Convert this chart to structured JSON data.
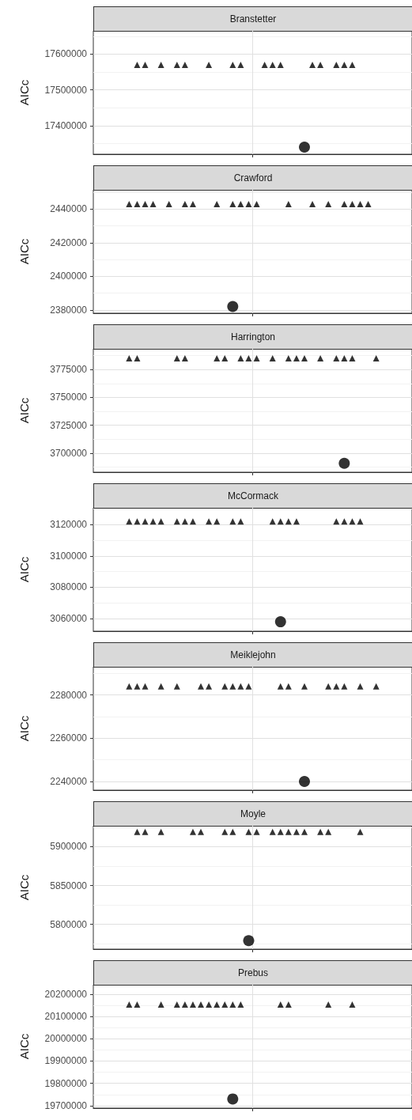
{
  "chart_data": [
    {
      "type": "scatter",
      "title": "Branstetter",
      "ylabel": "AICc",
      "grid": true,
      "tick_labels": "y",
      "categories": [
        null,
        null,
        null,
        null,
        null,
        null,
        null,
        null,
        null,
        null,
        null,
        null,
        null,
        null,
        null,
        null,
        null,
        null,
        null,
        null,
        null,
        null,
        null,
        null,
        null,
        null,
        null,
        null,
        null,
        null,
        null,
        null,
        null,
        null,
        null,
        null,
        null,
        null,
        null,
        null
      ],
      "ylim": [
        17320000,
        17665000
      ],
      "yticks": [
        17400000,
        17500000,
        17600000
      ],
      "series": [
        {
          "marker": "triangle",
          "color": "#000000",
          "values": [
            null,
            null,
            null,
            null,
            null,
            17570000,
            17570000,
            null,
            17570000,
            null,
            17570000,
            17570000,
            null,
            null,
            17570000,
            null,
            null,
            17570000,
            17570000,
            null,
            null,
            17570000,
            17570000,
            17570000,
            null,
            null,
            null,
            17570000,
            17570000,
            null,
            17570000,
            17570000,
            17570000,
            null,
            null,
            null,
            null,
            null,
            null,
            null
          ]
        },
        {
          "marker": "circle",
          "color": "#000000",
          "values": [
            null,
            null,
            null,
            null,
            null,
            null,
            null,
            null,
            null,
            null,
            null,
            null,
            null,
            null,
            null,
            null,
            null,
            null,
            null,
            null,
            null,
            null,
            null,
            null,
            null,
            null,
            17340000,
            null,
            null,
            null,
            null,
            null,
            null,
            null,
            null,
            null,
            null,
            null,
            null,
            null
          ]
        }
      ]
    },
    {
      "type": "scatter",
      "title": "Crawford",
      "ylabel": "AICc",
      "grid": true,
      "tick_labels": "y",
      "categories": [
        null,
        null,
        null,
        null,
        null,
        null,
        null,
        null,
        null,
        null,
        null,
        null,
        null,
        null,
        null,
        null,
        null,
        null,
        null,
        null,
        null,
        null,
        null,
        null,
        null,
        null,
        null,
        null,
        null,
        null,
        null,
        null,
        null,
        null,
        null,
        null,
        null,
        null,
        null,
        null
      ],
      "ylim": [
        2378000,
        2451500
      ],
      "yticks": [
        2380000,
        2400000,
        2420000,
        2440000
      ],
      "series": [
        {
          "marker": "triangle",
          "color": "#000000",
          "values": [
            null,
            null,
            null,
            null,
            2443000,
            2443000,
            2443000,
            2443000,
            null,
            2443000,
            null,
            2443000,
            2443000,
            null,
            null,
            2443000,
            null,
            2443000,
            2443000,
            2443000,
            2443000,
            null,
            null,
            null,
            2443000,
            null,
            null,
            2443000,
            null,
            2443000,
            null,
            2443000,
            2443000,
            2443000,
            2443000,
            null,
            null,
            null,
            null,
            null
          ]
        },
        {
          "marker": "circle",
          "color": "#000000",
          "values": [
            null,
            null,
            null,
            null,
            null,
            null,
            null,
            null,
            null,
            null,
            null,
            null,
            null,
            null,
            null,
            null,
            null,
            2382000,
            null,
            null,
            null,
            null,
            null,
            null,
            null,
            null,
            null,
            null,
            null,
            null,
            null,
            null,
            null,
            null,
            null,
            null,
            null,
            null,
            null,
            null
          ]
        }
      ]
    },
    {
      "type": "scatter",
      "title": "Harrington",
      "ylabel": "AICc",
      "grid": true,
      "tick_labels": "y",
      "categories": [
        null,
        null,
        null,
        null,
        null,
        null,
        null,
        null,
        null,
        null,
        null,
        null,
        null,
        null,
        null,
        null,
        null,
        null,
        null,
        null,
        null,
        null,
        null,
        null,
        null,
        null,
        null,
        null,
        null,
        null,
        null,
        null,
        null,
        null,
        null,
        null,
        null,
        null,
        null,
        null
      ],
      "ylim": [
        3683000,
        3793500
      ],
      "yticks": [
        3700000,
        3725000,
        3750000,
        3775000
      ],
      "series": [
        {
          "marker": "triangle",
          "color": "#000000",
          "values": [
            null,
            null,
            null,
            null,
            3785000,
            3785000,
            null,
            null,
            null,
            null,
            3785000,
            3785000,
            null,
            null,
            null,
            3785000,
            3785000,
            null,
            3785000,
            3785000,
            3785000,
            null,
            3785000,
            null,
            3785000,
            3785000,
            3785000,
            null,
            3785000,
            null,
            3785000,
            3785000,
            3785000,
            null,
            null,
            3785000,
            null,
            null,
            null,
            null
          ]
        },
        {
          "marker": "circle",
          "color": "#000000",
          "values": [
            null,
            null,
            null,
            null,
            null,
            null,
            null,
            null,
            null,
            null,
            null,
            null,
            null,
            null,
            null,
            null,
            null,
            null,
            null,
            null,
            null,
            null,
            null,
            null,
            null,
            null,
            null,
            null,
            null,
            null,
            null,
            3691000,
            null,
            null,
            null,
            null,
            null,
            null,
            null,
            null
          ]
        }
      ]
    },
    {
      "type": "scatter",
      "title": "McCormack",
      "ylabel": "AICc",
      "grid": true,
      "tick_labels": "y",
      "categories": [
        null,
        null,
        null,
        null,
        null,
        null,
        null,
        null,
        null,
        null,
        null,
        null,
        null,
        null,
        null,
        null,
        null,
        null,
        null,
        null,
        null,
        null,
        null,
        null,
        null,
        null,
        null,
        null,
        null,
        null,
        null,
        null,
        null,
        null,
        null,
        null,
        null,
        null,
        null,
        null
      ],
      "ylim": [
        3052000,
        3130700
      ],
      "yticks": [
        3060000,
        3080000,
        3100000,
        3120000
      ],
      "series": [
        {
          "marker": "triangle",
          "color": "#000000",
          "values": [
            null,
            null,
            null,
            null,
            3122000,
            3122000,
            3122000,
            3122000,
            3122000,
            null,
            3122000,
            3122000,
            3122000,
            null,
            3122000,
            3122000,
            null,
            3122000,
            3122000,
            null,
            null,
            null,
            3122000,
            3122000,
            3122000,
            3122000,
            null,
            null,
            null,
            null,
            3122000,
            3122000,
            3122000,
            3122000,
            null,
            null,
            null,
            null,
            null,
            null
          ]
        },
        {
          "marker": "circle",
          "color": "#000000",
          "values": [
            null,
            null,
            null,
            null,
            null,
            null,
            null,
            null,
            null,
            null,
            null,
            null,
            null,
            null,
            null,
            null,
            null,
            null,
            null,
            null,
            null,
            null,
            null,
            3058000,
            null,
            null,
            null,
            null,
            null,
            null,
            null,
            null,
            null,
            null,
            null,
            null,
            null,
            null,
            null,
            null
          ]
        }
      ]
    },
    {
      "type": "scatter",
      "title": "Meiklejohn",
      "ylabel": "AICc",
      "grid": true,
      "tick_labels": "y",
      "categories": [
        null,
        null,
        null,
        null,
        null,
        null,
        null,
        null,
        null,
        null,
        null,
        null,
        null,
        null,
        null,
        null,
        null,
        null,
        null,
        null,
        null,
        null,
        null,
        null,
        null,
        null,
        null,
        null,
        null,
        null,
        null,
        null,
        null,
        null,
        null,
        null,
        null,
        null,
        null,
        null
      ],
      "ylim": [
        2236000,
        2293000
      ],
      "yticks": [
        2240000,
        2260000,
        2280000
      ],
      "series": [
        {
          "marker": "triangle",
          "color": "#000000",
          "values": [
            null,
            null,
            null,
            null,
            2284000,
            2284000,
            2284000,
            null,
            2284000,
            null,
            2284000,
            null,
            null,
            2284000,
            2284000,
            null,
            2284000,
            2284000,
            2284000,
            2284000,
            null,
            null,
            null,
            2284000,
            2284000,
            null,
            2284000,
            null,
            null,
            2284000,
            2284000,
            2284000,
            null,
            2284000,
            null,
            2284000,
            null,
            null,
            null,
            null
          ]
        },
        {
          "marker": "circle",
          "color": "#000000",
          "values": [
            null,
            null,
            null,
            null,
            null,
            null,
            null,
            null,
            null,
            null,
            null,
            null,
            null,
            null,
            null,
            null,
            null,
            null,
            null,
            null,
            null,
            null,
            null,
            null,
            null,
            null,
            2240000,
            null,
            null,
            null,
            null,
            null,
            null,
            null,
            null,
            null,
            null,
            null,
            null,
            null
          ]
        }
      ]
    },
    {
      "type": "scatter",
      "title": "Moyle",
      "ylabel": "AICc",
      "grid": true,
      "tick_labels": "y",
      "categories": [
        null,
        null,
        null,
        null,
        null,
        null,
        null,
        null,
        null,
        null,
        null,
        null,
        null,
        null,
        null,
        null,
        null,
        null,
        null,
        null,
        null,
        null,
        null,
        null,
        null,
        null,
        null,
        null,
        null,
        null,
        null,
        null,
        null,
        null,
        null,
        null,
        null,
        null,
        null,
        null
      ],
      "ylim": [
        5768000,
        5927000
      ],
      "yticks": [
        5800000,
        5850000,
        5900000
      ],
      "series": [
        {
          "marker": "triangle",
          "color": "#000000",
          "values": [
            null,
            null,
            null,
            null,
            null,
            5919000,
            5919000,
            null,
            5919000,
            null,
            null,
            null,
            5919000,
            5919000,
            null,
            null,
            5919000,
            5919000,
            null,
            5919000,
            5919000,
            null,
            5919000,
            5919000,
            5919000,
            5919000,
            5919000,
            null,
            5919000,
            5919000,
            null,
            null,
            null,
            5919000,
            null,
            null,
            null,
            null,
            null,
            null
          ]
        },
        {
          "marker": "circle",
          "color": "#000000",
          "values": [
            null,
            null,
            null,
            null,
            null,
            null,
            null,
            null,
            null,
            null,
            null,
            null,
            null,
            null,
            null,
            null,
            null,
            null,
            null,
            5779000,
            null,
            null,
            null,
            null,
            null,
            null,
            null,
            null,
            null,
            null,
            null,
            null,
            null,
            null,
            null,
            null,
            null,
            null,
            null,
            null
          ]
        }
      ]
    },
    {
      "type": "scatter",
      "title": "Prebus",
      "ylabel": "AICc",
      "grid": true,
      "tick_labels": "y",
      "categories": [
        null,
        null,
        null,
        null,
        null,
        null,
        null,
        null,
        null,
        null,
        null,
        null,
        null,
        null,
        null,
        null,
        null,
        null,
        null,
        null,
        null,
        null,
        null,
        null,
        null,
        null,
        null,
        null,
        null,
        null,
        null,
        null,
        null,
        null,
        null,
        null,
        null,
        null,
        null,
        null
      ],
      "ylim": [
        19689000,
        20242000
      ],
      "yticks": [
        19700000,
        19800000,
        19900000,
        20000000,
        20100000,
        20200000
      ],
      "series": [
        {
          "marker": "triangle",
          "color": "#000000",
          "values": [
            null,
            null,
            null,
            null,
            20153000,
            20153000,
            null,
            null,
            20153000,
            null,
            20153000,
            20153000,
            20153000,
            20153000,
            20153000,
            20153000,
            20153000,
            20153000,
            20153000,
            null,
            null,
            null,
            null,
            20153000,
            20153000,
            null,
            null,
            null,
            null,
            20153000,
            null,
            null,
            20153000,
            null,
            null,
            null,
            null,
            null,
            null,
            null
          ]
        },
        {
          "marker": "circle",
          "color": "#000000",
          "values": [
            null,
            null,
            null,
            null,
            null,
            null,
            null,
            null,
            null,
            null,
            null,
            null,
            null,
            null,
            null,
            null,
            null,
            19730000,
            null,
            null,
            null,
            null,
            null,
            null,
            null,
            null,
            null,
            null,
            null,
            null,
            null,
            null,
            null,
            null,
            null,
            null,
            null,
            null,
            null,
            null
          ]
        }
      ]
    }
  ]
}
